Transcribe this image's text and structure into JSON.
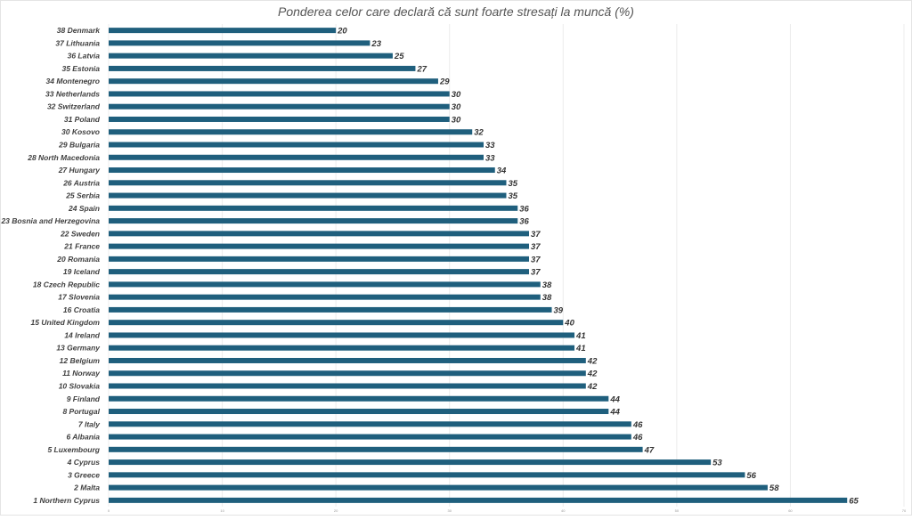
{
  "chart_data": {
    "type": "bar",
    "orientation": "horizontal",
    "title": "Ponderea celor care declară că sunt foarte stresați la muncă (%)",
    "xlabel": "",
    "ylabel": "",
    "xlim": [
      0,
      70
    ],
    "xticks": [
      0,
      10,
      20,
      30,
      40,
      50,
      60,
      70
    ],
    "grid": true,
    "bar_color": "#1f5f7d",
    "categories": [
      "38 Denmark",
      "37 Lithuania",
      "36 Latvia",
      "35 Estonia",
      "34 Montenegro",
      "33 Netherlands",
      "32 Switzerland",
      "31 Poland",
      "30 Kosovo",
      "29 Bulgaria",
      "28 North Macedonia",
      "27 Hungary",
      "26 Austria",
      "25 Serbia",
      "24 Spain",
      "23 Bosnia and Herzegovina",
      "22 Sweden",
      "21 France",
      "20 Romania",
      "19 Iceland",
      "18 Czech Republic",
      "17 Slovenia",
      "16 Croatia",
      "15 United Kingdom",
      "14 Ireland",
      "13 Germany",
      "12 Belgium",
      "11 Norway",
      "10 Slovakia",
      "9 Finland",
      "8 Portugal",
      "7 Italy",
      "6 Albania",
      "5 Luxembourg",
      "4 Cyprus",
      "3 Greece",
      "2 Malta",
      "1 Northern Cyprus"
    ],
    "values": [
      20,
      23,
      25,
      27,
      29,
      30,
      30,
      30,
      32,
      33,
      33,
      34,
      35,
      35,
      36,
      36,
      37,
      37,
      37,
      37,
      38,
      38,
      39,
      40,
      41,
      41,
      42,
      42,
      42,
      44,
      44,
      46,
      46,
      47,
      53,
      56,
      58,
      65
    ]
  }
}
